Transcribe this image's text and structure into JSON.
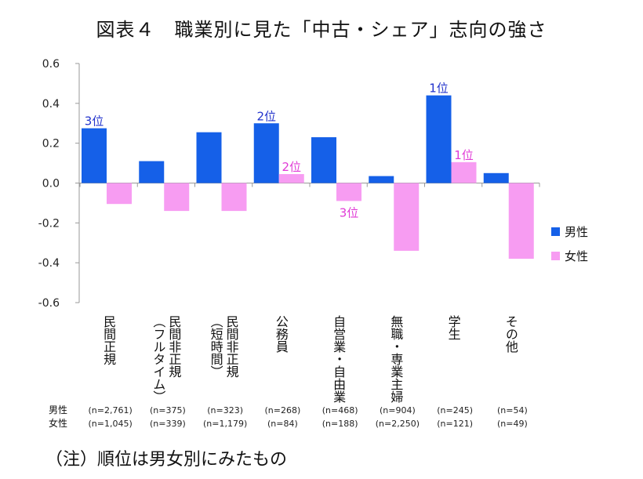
{
  "title": "図表４　職業別に見た「中古・シェア」志向の強さ",
  "note": "（注）順位は男女別にみたもの",
  "colors": {
    "male": "#1560e8",
    "female": "#f79cf2",
    "male_rank_text": "#2233cc",
    "female_rank_text": "#e03ad6"
  },
  "chart_data": {
    "type": "bar",
    "categories": [
      "民間正規",
      "民間非正規（フルタイム）",
      "民間非正規（短時間）",
      "公務員",
      "自営業・自由業",
      "無職・専業主婦",
      "学生",
      "その他"
    ],
    "series": [
      {
        "name": "男性",
        "values": [
          0.275,
          0.11,
          0.255,
          0.3,
          0.23,
          0.035,
          0.44,
          0.05
        ]
      },
      {
        "name": "女性",
        "values": [
          -0.105,
          -0.14,
          -0.14,
          0.045,
          -0.09,
          -0.34,
          0.105,
          -0.38
        ]
      }
    ],
    "ylim": [
      -0.6,
      0.6
    ],
    "yticks": [
      "0.6",
      "0.4",
      "0.2",
      "0.0",
      "-0.2",
      "-0.4",
      "-0.6"
    ],
    "ytick_values": [
      0.6,
      0.4,
      0.2,
      0.0,
      -0.2,
      -0.4,
      -0.6
    ],
    "legend_position": "right",
    "annotations": [
      {
        "series": 0,
        "index": 0,
        "text": "3位"
      },
      {
        "series": 0,
        "index": 3,
        "text": "2位"
      },
      {
        "series": 0,
        "index": 6,
        "text": "1位"
      },
      {
        "series": 1,
        "index": 3,
        "text": "2位"
      },
      {
        "series": 1,
        "index": 4,
        "text": "3位"
      },
      {
        "series": 1,
        "index": 6,
        "text": "1位"
      }
    ],
    "sample_rows": [
      {
        "label": "男性",
        "values": [
          "(n=2,761)",
          "(n=375)",
          "(n=323)",
          "(n=268)",
          "(n=468)",
          "(n=904)",
          "(n=245)",
          "(n=54)"
        ]
      },
      {
        "label": "女性",
        "values": [
          "(n=1,045)",
          "(n=339)",
          "(n=1,179)",
          "(n=84)",
          "(n=188)",
          "(n=2,250)",
          "(n=121)",
          "(n=49)"
        ]
      }
    ]
  }
}
